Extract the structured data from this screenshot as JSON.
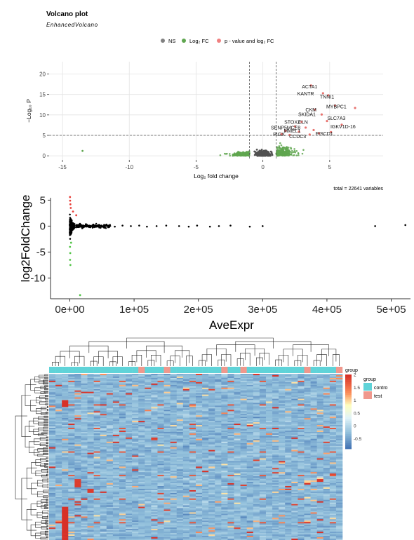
{
  "chart_data": [
    {
      "type": "scatter",
      "title": "Volcano plot",
      "subtitle": "EnhancedVolcano",
      "xlabel": "Log₂ fold change",
      "ylabel": "−Log₁₀ P",
      "caption": "total = 22641 variables",
      "xlim": [
        -16,
        9
      ],
      "ylim": [
        -1,
        23
      ],
      "xticks": [
        "-15",
        "-10",
        "-5",
        "0",
        "5"
      ],
      "yticks": [
        "0",
        "5",
        "10",
        "15",
        "20"
      ],
      "fc_cutoff": [
        -1,
        1
      ],
      "p_cutoff": 5,
      "grid": true,
      "legend_position": "top",
      "legend": [
        {
          "label": "NS",
          "color": "#808080"
        },
        {
          "label": "Log₂ FC",
          "color": "#5fa64f"
        },
        {
          "label": "p - value and log₂ FC",
          "color": "#f08080"
        }
      ],
      "labeled_genes": [
        {
          "label": "ACTA1",
          "x": 3.5,
          "y": 16.5
        },
        {
          "label": "KANTR",
          "x": 3.2,
          "y": 14.8
        },
        {
          "label": "TNNI1",
          "x": 4.8,
          "y": 14.0
        },
        {
          "label": "MYBPC1",
          "x": 5.5,
          "y": 11.6
        },
        {
          "label": "CKM",
          "x": 3.6,
          "y": 10.8
        },
        {
          "label": "SKIDA1",
          "x": 3.3,
          "y": 9.7
        },
        {
          "label": "SLC7A3",
          "x": 5.5,
          "y": 8.8
        },
        {
          "label": "STOX2",
          "x": 2.2,
          "y": 7.8
        },
        {
          "label": "CLN",
          "x": 3.0,
          "y": 7.8
        },
        {
          "label": "IGKV1D-16",
          "x": 6.0,
          "y": 6.7
        },
        {
          "label": "SENP5",
          "x": 1.2,
          "y": 6.5
        },
        {
          "label": "MCE8",
          "x": 2.3,
          "y": 6.5
        },
        {
          "label": "MMEL1",
          "x": 2.2,
          "y": 5.7
        },
        {
          "label": "FISCD1",
          "x": 4.6,
          "y": 5.0
        },
        {
          "label": "PIGX",
          "x": 1.2,
          "y": 4.8
        },
        {
          "label": "CCDC3",
          "x": 2.6,
          "y": 4.3
        }
      ],
      "significant_points": [
        {
          "x": 3.6,
          "y": 17.2
        },
        {
          "x": 4.5,
          "y": 15.3
        },
        {
          "x": 4.9,
          "y": 14.8
        },
        {
          "x": 5.4,
          "y": 12.3
        },
        {
          "x": 6.9,
          "y": 11.7
        },
        {
          "x": 3.9,
          "y": 11.3
        },
        {
          "x": 4.4,
          "y": 10.1
        },
        {
          "x": 2.9,
          "y": 8.3
        },
        {
          "x": 4.8,
          "y": 8.5
        },
        {
          "x": 5.9,
          "y": 7.6
        },
        {
          "x": 2.4,
          "y": 7.2
        },
        {
          "x": 3.2,
          "y": 6.9
        },
        {
          "x": 3.8,
          "y": 6.3
        },
        {
          "x": 1.7,
          "y": 6.1
        },
        {
          "x": 2.7,
          "y": 5.9
        },
        {
          "x": 4.2,
          "y": 5.5
        },
        {
          "x": 1.4,
          "y": 5.3
        },
        {
          "x": 3.5,
          "y": 5.2
        },
        {
          "x": 5.1,
          "y": 5.8
        },
        {
          "x": 2.0,
          "y": 5.1
        }
      ]
    },
    {
      "type": "scatter",
      "xlabel": "AveExpr",
      "ylabel": "log2FoldChange",
      "xlim": [
        -30000,
        530000
      ],
      "ylim": [
        -14,
        6
      ],
      "xticks": [
        "0e+00",
        "1e+05",
        "2e+05",
        "3e+05",
        "4e+05",
        "5e+05"
      ],
      "yticks": [
        "5",
        "0",
        "-5",
        "-10"
      ],
      "grid": false,
      "points": [
        {
          "x": 12000,
          "y": 0.2
        },
        {
          "x": 18000,
          "y": -0.1
        },
        {
          "x": 25000,
          "y": 0.3
        },
        {
          "x": 31000,
          "y": 0.1
        },
        {
          "x": 38000,
          "y": -0.2
        },
        {
          "x": 45000,
          "y": 0.2
        },
        {
          "x": 52000,
          "y": 0.0
        },
        {
          "x": 60000,
          "y": 0.1
        },
        {
          "x": 70000,
          "y": -0.1
        },
        {
          "x": 82000,
          "y": 0.1
        },
        {
          "x": 95000,
          "y": 0.0
        },
        {
          "x": 108000,
          "y": 0.1
        },
        {
          "x": 120000,
          "y": -0.1
        },
        {
          "x": 135000,
          "y": 0.0
        },
        {
          "x": 150000,
          "y": 0.1
        },
        {
          "x": 170000,
          "y": 0.0
        },
        {
          "x": 185000,
          "y": -0.1
        },
        {
          "x": 198000,
          "y": 0.1
        },
        {
          "x": 218000,
          "y": -0.1
        },
        {
          "x": 232000,
          "y": 0.0
        },
        {
          "x": 250000,
          "y": 0.1
        },
        {
          "x": 280000,
          "y": -0.1
        },
        {
          "x": 300000,
          "y": 0.0
        },
        {
          "x": 475000,
          "y": 0.0
        },
        {
          "x": 522000,
          "y": 0.2
        }
      ],
      "up_points": [
        {
          "x": 300,
          "y": 5.6
        },
        {
          "x": 500,
          "y": 4.9
        },
        {
          "x": 900,
          "y": 4.2
        },
        {
          "x": 5000,
          "y": 2.8
        },
        {
          "x": 10000,
          "y": 2.1
        },
        {
          "x": 1500,
          "y": 3.5
        }
      ],
      "down_points": [
        {
          "x": 300,
          "y": -4.0
        },
        {
          "x": 700,
          "y": -5.2
        },
        {
          "x": 400,
          "y": -6.5
        },
        {
          "x": 900,
          "y": -7.5
        },
        {
          "x": 2000,
          "y": -3.2
        },
        {
          "x": 16000,
          "y": -13.3
        }
      ]
    },
    {
      "type": "heatmap",
      "legend_title": "group",
      "groups": [
        {
          "name": "contro",
          "color": "#5fd3d8"
        },
        {
          "name": "test",
          "color": "#f0988d"
        }
      ],
      "scale_ticks": [
        "2",
        "1.5",
        "1",
        "0.5",
        "0",
        "-0.5"
      ],
      "scale_range": [
        -0.9,
        2
      ],
      "n_samples": 46,
      "n_genes": 120,
      "test_sample_indices": [
        14,
        18,
        27,
        30,
        40,
        45
      ]
    }
  ]
}
